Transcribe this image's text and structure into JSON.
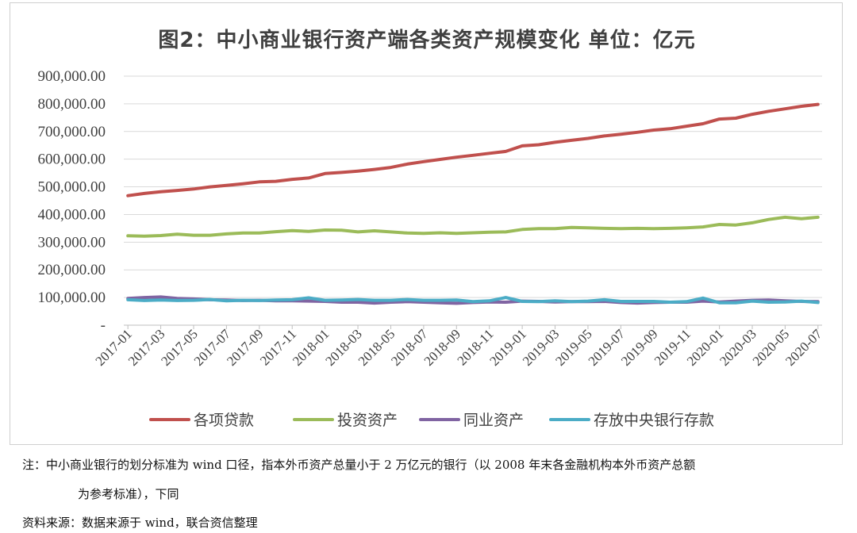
{
  "title": "图2：中小商业银行资产端各类资产规模变化 单位：亿元",
  "chart_data": {
    "type": "line",
    "title": "图2：中小商业银行资产端各类资产规模变化 单位：亿元",
    "ylim": [
      0,
      900000
    ],
    "y_ticks": [
      "-",
      "100,000.00",
      "200,000.00",
      "300,000.00",
      "400,000.00",
      "500,000.00",
      "600,000.00",
      "700,000.00",
      "800,000.00",
      "900,000.00"
    ],
    "x_tick_labels": [
      "2017-01",
      "2017-03",
      "2017-05",
      "2017-07",
      "2017-09",
      "2017-11",
      "2018-01",
      "2018-03",
      "2018-05",
      "2018-07",
      "2018-09",
      "2018-11",
      "2019-01",
      "2019-03",
      "2019-05",
      "2019-07",
      "2019-09",
      "2019-11",
      "2020-01",
      "2020-03",
      "2020-05",
      "2020-07"
    ],
    "x": [
      "2017-01",
      "2017-02",
      "2017-03",
      "2017-04",
      "2017-05",
      "2017-06",
      "2017-07",
      "2017-08",
      "2017-09",
      "2017-10",
      "2017-11",
      "2017-12",
      "2018-01",
      "2018-02",
      "2018-03",
      "2018-04",
      "2018-05",
      "2018-06",
      "2018-07",
      "2018-08",
      "2018-09",
      "2018-10",
      "2018-11",
      "2018-12",
      "2019-01",
      "2019-02",
      "2019-03",
      "2019-04",
      "2019-05",
      "2019-06",
      "2019-07",
      "2019-08",
      "2019-09",
      "2019-10",
      "2019-11",
      "2019-12",
      "2020-01",
      "2020-02",
      "2020-03",
      "2020-04",
      "2020-05",
      "2020-06",
      "2020-07"
    ],
    "legend_position": "bottom",
    "grid": "horizontal",
    "series": [
      {
        "name": "各项贷款",
        "color": "#c0504d",
        "values": [
          468000,
          476000,
          482000,
          487000,
          492000,
          500000,
          505000,
          511000,
          518000,
          520000,
          527000,
          532000,
          548000,
          552000,
          557000,
          563000,
          570000,
          582000,
          591000,
          599000,
          607000,
          614000,
          621000,
          628000,
          648000,
          652000,
          661000,
          668000,
          675000,
          684000,
          690000,
          697000,
          705000,
          710000,
          719000,
          728000,
          745000,
          748000,
          762000,
          773000,
          782000,
          791000,
          798000
        ]
      },
      {
        "name": "投资资产",
        "color": "#9bbb59",
        "values": [
          323000,
          322000,
          324000,
          329000,
          325000,
          325000,
          330000,
          333000,
          333000,
          338000,
          342000,
          339000,
          344000,
          343000,
          337000,
          341000,
          337000,
          333000,
          332000,
          334000,
          332000,
          334000,
          336000,
          337000,
          346000,
          349000,
          349000,
          353000,
          352000,
          350000,
          349000,
          350000,
          349000,
          350000,
          352000,
          355000,
          364000,
          362000,
          370000,
          382000,
          390000,
          385000,
          390000
        ]
      },
      {
        "name": "同业资产",
        "color": "#8064a2",
        "values": [
          97000,
          100000,
          102000,
          97000,
          95000,
          92000,
          91000,
          89000,
          90000,
          88000,
          88000,
          87000,
          86000,
          83000,
          83000,
          80000,
          83000,
          85000,
          83000,
          81000,
          79000,
          82000,
          84000,
          83000,
          87000,
          86000,
          84000,
          85000,
          85000,
          86000,
          82000,
          80000,
          82000,
          83000,
          83000,
          87000,
          84000,
          87000,
          90000,
          91000,
          88000,
          86000,
          85000
        ]
      },
      {
        "name": "存放中央银行存款",
        "color": "#4bacc6",
        "values": [
          92000,
          89000,
          91000,
          89000,
          90000,
          93000,
          88000,
          90000,
          89000,
          91000,
          92000,
          99000,
          90000,
          91000,
          93000,
          90000,
          90000,
          93000,
          90000,
          90000,
          91000,
          85000,
          88000,
          100000,
          86000,
          85000,
          88000,
          85000,
          87000,
          92000,
          86000,
          86000,
          86000,
          83000,
          85000,
          98000,
          81000,
          81000,
          87000,
          83000,
          84000,
          87000,
          82000
        ]
      }
    ]
  },
  "notes": {
    "line1": "注：中小商业银行的划分标准为 wind 口径，指本外币资产总量小于 2 万亿元的银行（以 2008 年末各金融机构本外币资产总额",
    "line2": "为参考标准），下同",
    "line3": "资料来源：数据来源于 wind，联合资信整理"
  }
}
